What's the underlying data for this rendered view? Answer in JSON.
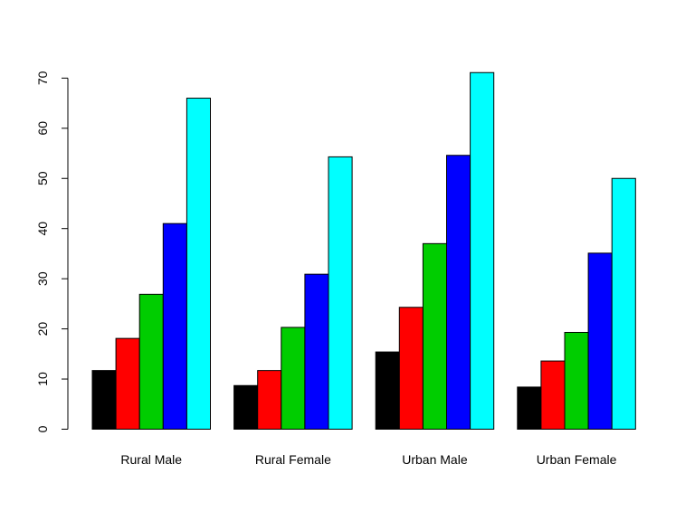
{
  "chart_data": {
    "type": "bar",
    "categories": [
      "Rural Male",
      "Rural Female",
      "Urban Male",
      "Urban Female"
    ],
    "series": [
      {
        "values": [
          11.7,
          8.7,
          15.4,
          8.4
        ],
        "color": "#000000"
      },
      {
        "values": [
          18.1,
          11.7,
          24.3,
          13.6
        ],
        "color": "#FF0000"
      },
      {
        "values": [
          26.9,
          20.3,
          37.0,
          19.3
        ],
        "color": "#00CD00"
      },
      {
        "values": [
          41.0,
          30.9,
          54.6,
          35.1
        ],
        "color": "#0000FF"
      },
      {
        "values": [
          66.0,
          54.3,
          71.1,
          50.0
        ],
        "color": "#00FFFF"
      }
    ],
    "yticks": [
      0,
      10,
      20,
      30,
      40,
      50,
      60,
      70
    ],
    "ylim": [
      0,
      72
    ],
    "title": "",
    "xlabel": "",
    "ylabel": "",
    "grid": false,
    "legend": "none"
  }
}
